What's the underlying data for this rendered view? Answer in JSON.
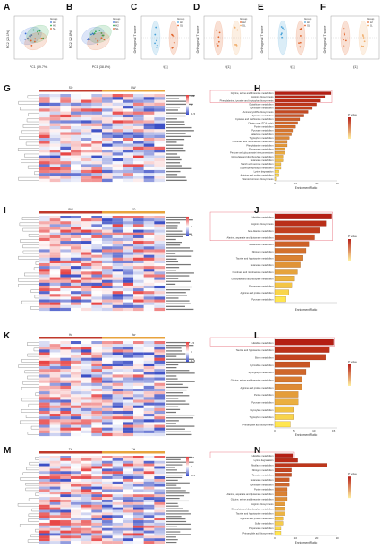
{
  "figure": {
    "panel_labels": [
      "A",
      "B",
      "C",
      "D",
      "E",
      "F",
      "G",
      "H",
      "I",
      "J",
      "K",
      "L",
      "M",
      "N"
    ]
  },
  "scatter_panels": {
    "A": {
      "xlabel": "PC1 (39.7%)",
      "ylabel": "PC2 (23.1%)",
      "legend_title": "Group",
      "groups": [
        "H1",
        "H2",
        "SL"
      ],
      "colors": [
        "#3b6fd6",
        "#2fa84f",
        "#e0632a"
      ]
    },
    "B": {
      "xlabel": "PC1 (38.8%)",
      "ylabel": "PC2 (22.8%)",
      "legend_title": "Group",
      "groups": [
        "H1",
        "H2",
        "SL"
      ],
      "colors": [
        "#3b6fd6",
        "#2fa84f",
        "#e0632a"
      ]
    },
    "C": {
      "xlabel": "t[1]",
      "ylabel": "Orthogonal T score",
      "legend_title": "Group",
      "groups": [
        "H1",
        "SL"
      ],
      "colors": [
        "#4aa3d9",
        "#e0632a"
      ]
    },
    "D": {
      "xlabel": "t[1]",
      "ylabel": "Orthogonal T score",
      "legend_title": "Group",
      "groups": [
        "H2",
        "SL"
      ],
      "colors": [
        "#e0632a",
        "#f0b070"
      ]
    },
    "E": {
      "xlabel": "t[1]",
      "ylabel": "Orthogonal T score",
      "legend_title": "Group",
      "groups": [
        "H1",
        "SL"
      ],
      "colors": [
        "#4aa3d9",
        "#e0632a"
      ]
    },
    "F": {
      "xlabel": "t[1]",
      "ylabel": "Orthogonal T score",
      "legend_title": "Group",
      "groups": [
        "H2",
        "SL"
      ],
      "colors": [
        "#e0632a",
        "#f0b070"
      ]
    }
  },
  "heatmaps": {
    "G": {
      "groups": [
        "SO",
        "BW"
      ],
      "scale": [
        "1.5",
        "0",
        "-1.5"
      ],
      "rows": 30
    },
    "I": {
      "groups": [
        "BW",
        "SO"
      ],
      "scale": [
        "1",
        "0",
        "-1"
      ],
      "rows": 34
    },
    "K": {
      "groups": [
        "Hq",
        "Hw"
      ],
      "scale": [
        "1.5",
        "0",
        "-1.5"
      ],
      "rows": 34
    },
    "M": {
      "groups": [
        "Tbl",
        "Tbl"
      ],
      "scale": [
        "0.5",
        "0",
        "-0.5"
      ],
      "rows": 34
    }
  },
  "chart_data": [
    {
      "panel": "H",
      "type": "bar",
      "xlabel": "Enrichment Ratio",
      "legend_title": "P value",
      "xticks": [
        "0",
        "10",
        "20",
        "30"
      ],
      "categories": [
        "Glycine, serine and threonine metabolism",
        "Arginine biosynthesis",
        "Phenylalanine, tyrosine and tryptophan biosynthesis",
        "Glutathione metabolism",
        "Pyrimidine metabolism",
        "Aminoacyl-tRNA biosynthesis",
        "Tyrosine metabolism",
        "Cysteine and methionine metabolism",
        "Citrate cycle (TCA cycle)",
        "Purine metabolism",
        "Pyruvate metabolism",
        "Galactose metabolism",
        "Tryptophan metabolism",
        "Nicotinate and nicotinamide metabolism",
        "Phenylalanine metabolism",
        "Propanoate metabolism",
        "Pentose and glucuronate interconversions",
        "Glyoxylate and dicarboxylate metabolism",
        "Butanoate metabolism",
        "Starch and sucrose metabolism",
        "Glycerophospholipid metabolism",
        "Lysine degradation",
        "Arginine and proline metabolism",
        "Steroid hormone biosynthesis"
      ],
      "values": [
        27,
        24,
        22,
        20,
        18,
        16,
        14,
        12,
        11,
        10,
        9,
        8,
        7,
        6,
        6,
        5,
        5,
        4,
        4,
        3,
        3,
        2,
        2,
        1
      ],
      "xlim": [
        0,
        30
      ]
    },
    {
      "panel": "J",
      "type": "bar",
      "xlabel": "Enrichment Ratio",
      "legend_title": "P value",
      "categories": [
        "Histidine metabolism",
        "Arginine biosynthesis",
        "beta-Alanine metabolism",
        "Alanine, aspartate and glutamate metabolism",
        "Glutathione metabolism",
        "Nitrogen metabolism",
        "Taurine and hypotaurine metabolism",
        "Butanoate metabolism",
        "Nicotinate and nicotinamide metabolism",
        "Glyoxylate and dicarboxylate metabolism",
        "Propanoate metabolism",
        "Arginine and proline metabolism",
        "Pyruvate metabolism"
      ],
      "values": [
        20,
        18,
        16,
        14,
        12,
        11,
        10,
        9,
        8,
        7,
        6,
        5,
        4
      ],
      "xlim": [
        0,
        22
      ]
    },
    {
      "panel": "L",
      "type": "bar",
      "xlabel": "Enrichment Ratio",
      "legend_title": "P value",
      "xticks": [
        "0",
        "5",
        "10",
        "15"
      ],
      "categories": [
        "Histidine metabolism",
        "Taurine and hypotaurine metabolism",
        "Biotin metabolism",
        "Pyrimidine metabolism",
        "Sphingolipid metabolism",
        "Glycine, serine and threonine metabolism",
        "Arginine and proline metabolism",
        "Purine metabolism",
        "Pyruvate metabolism",
        "Glyoxylate metabolism",
        "Tryptophan metabolism",
        "Primary bile acid biosynthesis"
      ],
      "values": [
        15,
        14,
        13,
        9,
        8,
        7,
        7,
        6,
        6,
        5,
        5,
        4
      ],
      "xlim": [
        0,
        16
      ]
    },
    {
      "panel": "N",
      "type": "bar",
      "xlabel": "Enrichment Ratio",
      "legend_title": "P value",
      "xticks": [
        "0",
        "10",
        "20",
        "30"
      ],
      "categories": [
        "Histidine metabolism",
        "Lysine degradation",
        "Riboflavin metabolism",
        "Nitrogen metabolism",
        "Tyrosine metabolism",
        "Butanoate metabolism",
        "Pyrimidine metabolism",
        "Purine metabolism",
        "Alanine, aspartate and glutamate metabolism",
        "Glycine, serine and threonine metabolism",
        "Arginine biosynthesis",
        "Glyoxylate and dicarboxylate metabolism",
        "Taurine and hypotaurine metabolism",
        "Arginine and proline metabolism",
        "Sulfur metabolism",
        "Propanoate metabolism",
        "Primary bile acid biosynthesis"
      ],
      "values": [
        9,
        11,
        25,
        8,
        8,
        7,
        7,
        6,
        6,
        6,
        5,
        5,
        5,
        4,
        4,
        3,
        3
      ],
      "xlim": [
        0,
        30
      ]
    }
  ]
}
